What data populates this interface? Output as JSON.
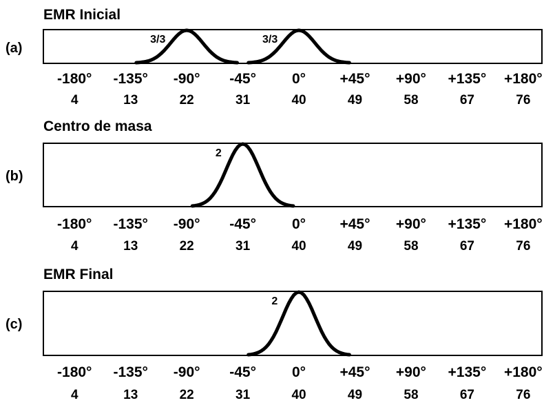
{
  "axis": {
    "degree_labels": [
      "-180°",
      "-135°",
      "-90°",
      "-45°",
      "0°",
      "+45°",
      "+90°",
      "+135°",
      "+180°"
    ],
    "index_labels": [
      "4",
      "13",
      "22",
      "31",
      "40",
      "49",
      "58",
      "67",
      "76"
    ],
    "degree_values": [
      -180,
      -135,
      -90,
      -45,
      0,
      45,
      90,
      135,
      180
    ],
    "range": [
      -205,
      195
    ]
  },
  "panels": [
    {
      "letter": "(a)",
      "title": "EMR Inicial",
      "peaks": [
        {
          "center": -90,
          "label": "3/3"
        },
        {
          "center": 0,
          "label": "3/3"
        }
      ]
    },
    {
      "letter": "(b)",
      "title": "Centro de masa",
      "peaks": [
        {
          "center": -45,
          "label": "2"
        }
      ]
    },
    {
      "letter": "(c)",
      "title": "EMR Final",
      "peaks": [
        {
          "center": 0,
          "label": "2"
        }
      ]
    }
  ]
}
